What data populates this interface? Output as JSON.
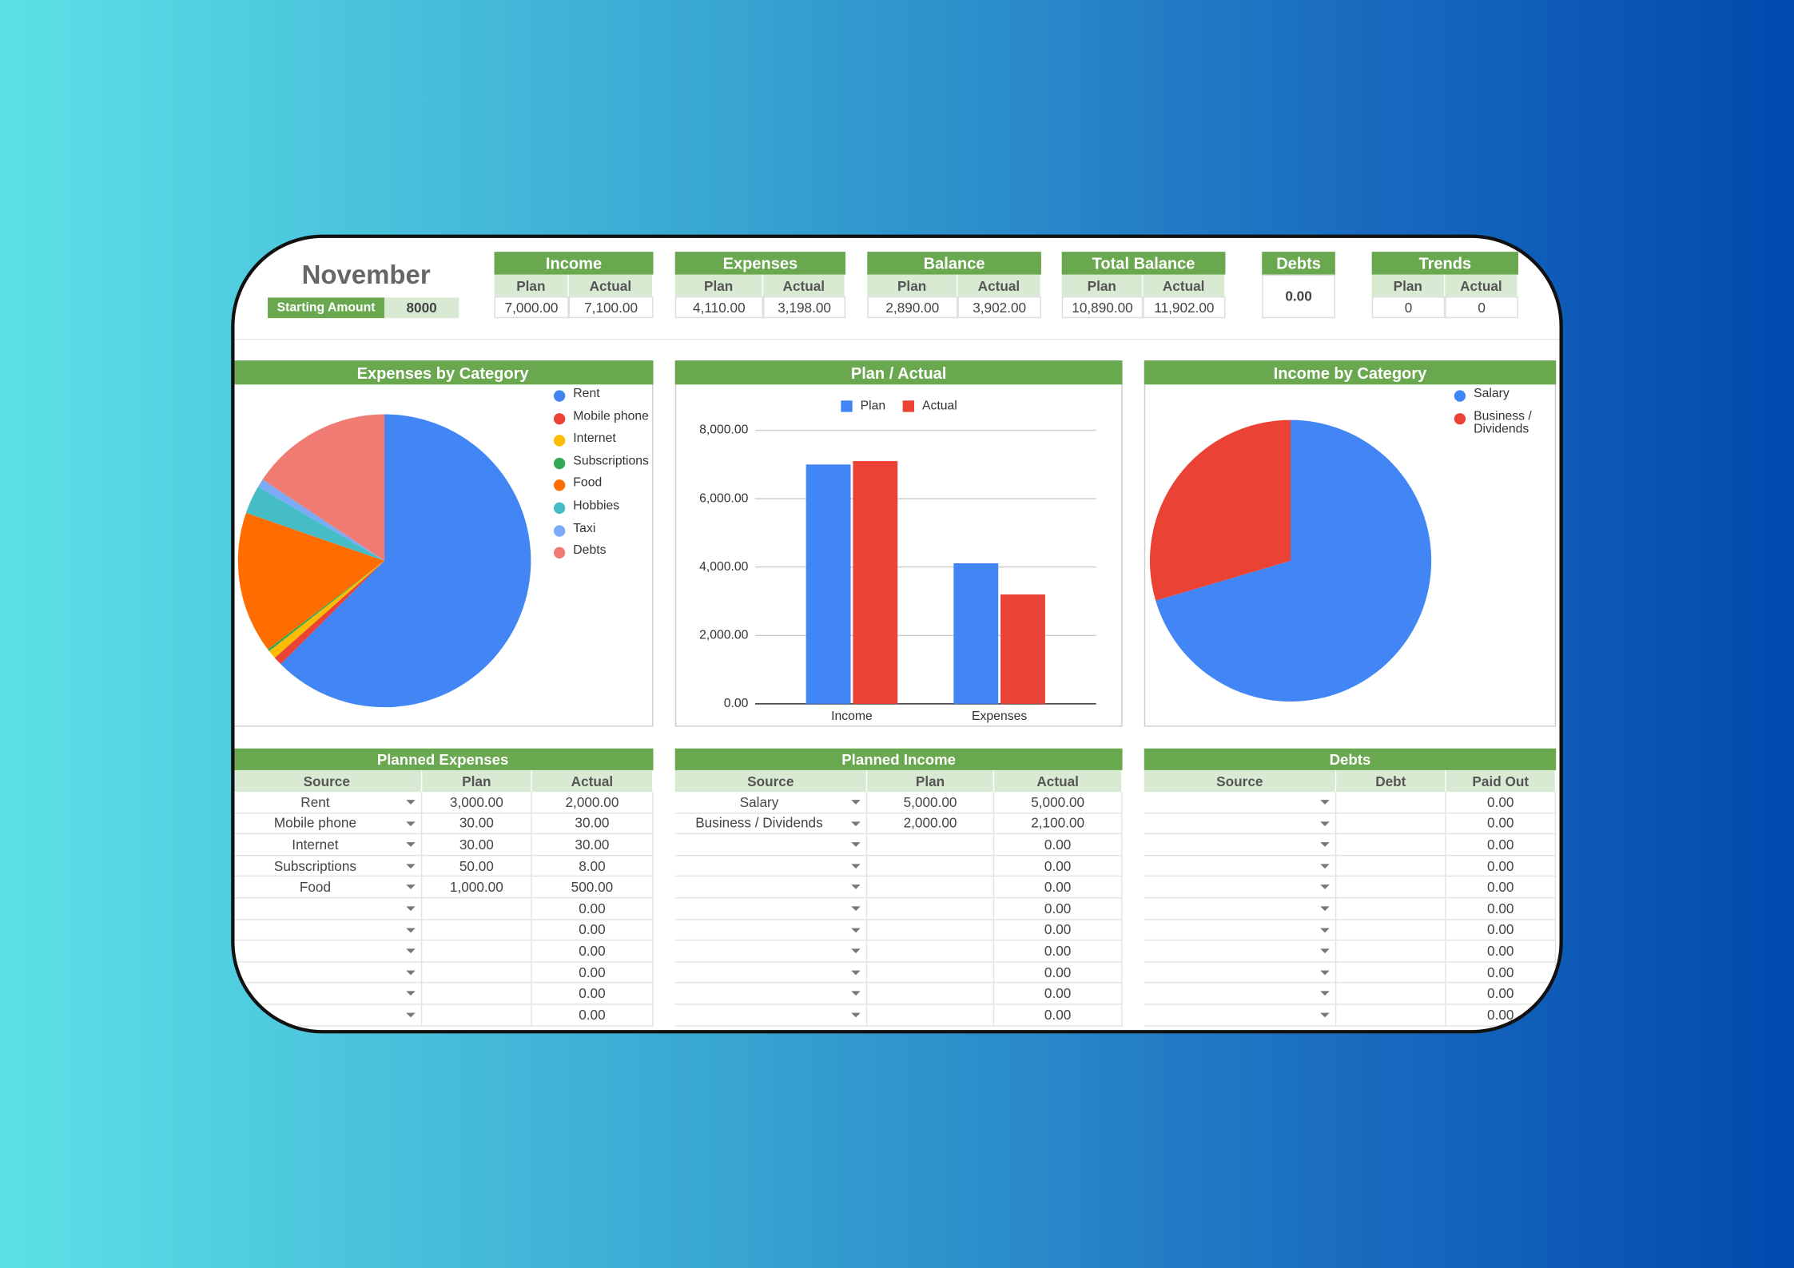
{
  "header": {
    "title": "November",
    "starting_amount_label": "Starting Amount",
    "starting_amount": "8000"
  },
  "summary": [
    {
      "title": "Income",
      "columns": [
        "Plan",
        "Actual"
      ],
      "values": [
        "7,000.00",
        "7,100.00"
      ]
    },
    {
      "title": "Expenses",
      "columns": [
        "Plan",
        "Actual"
      ],
      "values": [
        "4,110.00",
        "3,198.00"
      ]
    },
    {
      "title": "Balance",
      "columns": [
        "Plan",
        "Actual"
      ],
      "values": [
        "2,890.00",
        "3,902.00"
      ]
    },
    {
      "title": "Total Balance",
      "columns": [
        "Plan",
        "Actual"
      ],
      "values": [
        "10,890.00",
        "11,902.00"
      ]
    },
    {
      "title": "Debts",
      "values": [
        "0.00"
      ]
    },
    {
      "title": "Trends",
      "columns": [
        "Plan",
        "Actual"
      ],
      "values": [
        "0",
        "0"
      ]
    }
  ],
  "chart_data": [
    {
      "type": "pie",
      "title": "Expenses by Category",
      "categories": [
        "Rent",
        "Mobile phone",
        "Internet",
        "Subscriptions",
        "Food",
        "Hobbies",
        "Taxi",
        "Debts"
      ],
      "values": [
        2000,
        30,
        30,
        8,
        500,
        100,
        30,
        500
      ],
      "colors": [
        "#4285f4",
        "#ea4335",
        "#fbbc04",
        "#34a853",
        "#ff6d01",
        "#46bdc6",
        "#7baaf7",
        "#f07b72"
      ],
      "legend": "right"
    },
    {
      "type": "bar",
      "title": "Plan / Actual",
      "categories": [
        "Income",
        "Expenses"
      ],
      "series": [
        {
          "name": "Plan",
          "color": "#4285f4",
          "values": [
            7000,
            4110
          ]
        },
        {
          "name": "Actual",
          "color": "#ea4335",
          "values": [
            7100,
            3198
          ]
        }
      ],
      "ylim": [
        0,
        8000
      ],
      "yticks": [
        {
          "value": 0,
          "label": "0.00"
        },
        {
          "value": 2000,
          "label": "2,000.00"
        },
        {
          "value": 4000,
          "label": "4,000.00"
        },
        {
          "value": 6000,
          "label": "6,000.00"
        },
        {
          "value": 8000,
          "label": "8,000.00"
        }
      ],
      "grid": true,
      "legend": "top"
    },
    {
      "type": "pie",
      "title": "Income by Category",
      "categories": [
        "Salary",
        "Business / Dividends"
      ],
      "values": [
        5000,
        2100
      ],
      "colors": [
        "#4285f4",
        "#ea4335"
      ],
      "legend": "right"
    }
  ],
  "tables": [
    {
      "title": "Planned Expenses",
      "columns": [
        "Source",
        "Plan",
        "Actual"
      ],
      "rows": [
        [
          "Rent",
          "3,000.00",
          "2,000.00"
        ],
        [
          "Mobile phone",
          "30.00",
          "30.00"
        ],
        [
          "Internet",
          "30.00",
          "30.00"
        ],
        [
          "Subscriptions",
          "50.00",
          "8.00"
        ],
        [
          "Food",
          "1,000.00",
          "500.00"
        ],
        [
          null,
          null,
          "0.00"
        ],
        [
          null,
          null,
          "0.00"
        ],
        [
          null,
          null,
          "0.00"
        ],
        [
          null,
          null,
          "0.00"
        ],
        [
          null,
          null,
          "0.00"
        ],
        [
          null,
          null,
          "0.00"
        ]
      ]
    },
    {
      "title": "Planned Income",
      "columns": [
        "Source",
        "Plan",
        "Actual"
      ],
      "rows": [
        [
          "Salary",
          "5,000.00",
          "5,000.00"
        ],
        [
          "Business / Dividends",
          "2,000.00",
          "2,100.00"
        ],
        [
          null,
          null,
          "0.00"
        ],
        [
          null,
          null,
          "0.00"
        ],
        [
          null,
          null,
          "0.00"
        ],
        [
          null,
          null,
          "0.00"
        ],
        [
          null,
          null,
          "0.00"
        ],
        [
          null,
          null,
          "0.00"
        ],
        [
          null,
          null,
          "0.00"
        ],
        [
          null,
          null,
          "0.00"
        ],
        [
          null,
          null,
          "0.00"
        ]
      ]
    },
    {
      "title": "Debts",
      "columns": [
        "Source",
        "Debt",
        "Paid Out"
      ],
      "rows": [
        [
          null,
          null,
          "0.00"
        ],
        [
          null,
          null,
          "0.00"
        ],
        [
          null,
          null,
          "0.00"
        ],
        [
          null,
          null,
          "0.00"
        ],
        [
          null,
          null,
          "0.00"
        ],
        [
          null,
          null,
          "0.00"
        ],
        [
          null,
          null,
          "0.00"
        ],
        [
          null,
          null,
          "0.00"
        ],
        [
          null,
          null,
          "0.00"
        ],
        [
          null,
          null,
          "0.00"
        ],
        [
          null,
          null,
          "0.00"
        ]
      ]
    }
  ]
}
